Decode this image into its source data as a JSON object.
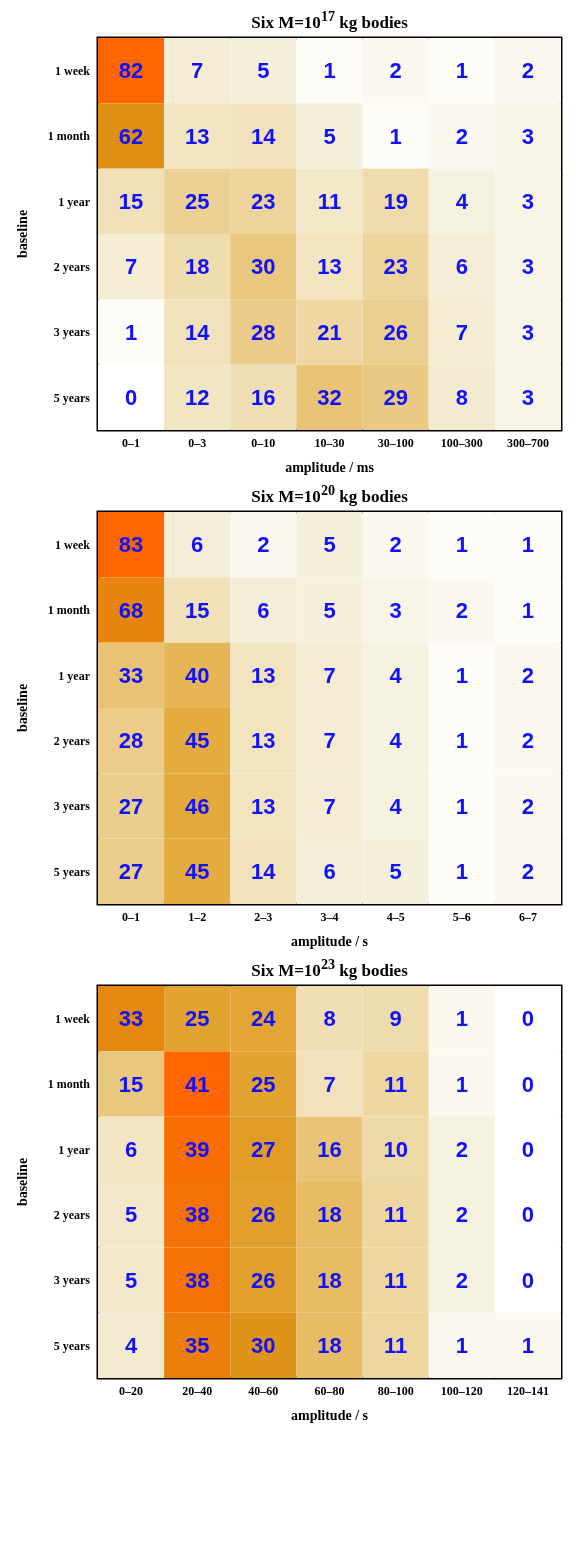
{
  "chart_data": [
    {
      "type": "heatmap",
      "title": "Six M=10$^{17}$ kg bodies",
      "xlabel": "amplitude / ms",
      "ylabel": "baseline",
      "categories": [
        "0–1",
        "0–3",
        "0–10",
        "10–30",
        "30–100",
        "100–300",
        "300–700"
      ],
      "y_categories": [
        "1 week",
        "1 month",
        "1 year",
        "2 years",
        "3 years",
        "5 years"
      ],
      "cells": [
        [
          82,
          7,
          5,
          1,
          2,
          1,
          2
        ],
        [
          62,
          13,
          14,
          5,
          1,
          2,
          3
        ],
        [
          15,
          25,
          23,
          11,
          19,
          4,
          3
        ],
        [
          7,
          18,
          30,
          13,
          23,
          6,
          3
        ],
        [
          1,
          14,
          28,
          21,
          26,
          7,
          3
        ],
        [
          0,
          12,
          16,
          32,
          29,
          8,
          3
        ]
      ],
      "data_labels": true
    },
    {
      "type": "heatmap",
      "title": "Six M=10$^{20}$ kg bodies",
      "xlabel": "amplitude / s",
      "ylabel": "baseline",
      "categories": [
        "0–1",
        "1–2",
        "2–3",
        "3–4",
        "4–5",
        "5–6",
        "6–7"
      ],
      "y_categories": [
        "1 week",
        "1 month",
        "1 year",
        "2 years",
        "3 years",
        "5 years"
      ],
      "cells": [
        [
          83,
          6,
          2,
          5,
          2,
          1,
          1
        ],
        [
          68,
          15,
          6,
          5,
          3,
          2,
          1
        ],
        [
          33,
          40,
          13,
          7,
          4,
          1,
          2
        ],
        [
          28,
          45,
          13,
          7,
          4,
          1,
          2
        ],
        [
          27,
          46,
          13,
          7,
          4,
          1,
          2
        ],
        [
          27,
          45,
          14,
          6,
          5,
          1,
          2
        ]
      ],
      "data_labels": true
    },
    {
      "type": "heatmap",
      "title": "Six M=10$^{23}$ kg bodies",
      "xlabel": "amplitude / s",
      "ylabel": "baseline",
      "categories": [
        "0–20",
        "20–40",
        "40–60",
        "60–80",
        "80–100",
        "100–120",
        "120–141"
      ],
      "y_categories": [
        "1 week",
        "1 month",
        "1 year",
        "2 years",
        "3 years",
        "5 years"
      ],
      "cells": [
        [
          33,
          25,
          24,
          8,
          9,
          1,
          0
        ],
        [
          15,
          41,
          25,
          7,
          11,
          1,
          0
        ],
        [
          6,
          39,
          27,
          16,
          10,
          2,
          0
        ],
        [
          5,
          38,
          26,
          18,
          11,
          2,
          0
        ],
        [
          5,
          38,
          26,
          18,
          11,
          2,
          0
        ],
        [
          4,
          35,
          30,
          18,
          11,
          1,
          1
        ]
      ],
      "data_labels": true
    }
  ]
}
